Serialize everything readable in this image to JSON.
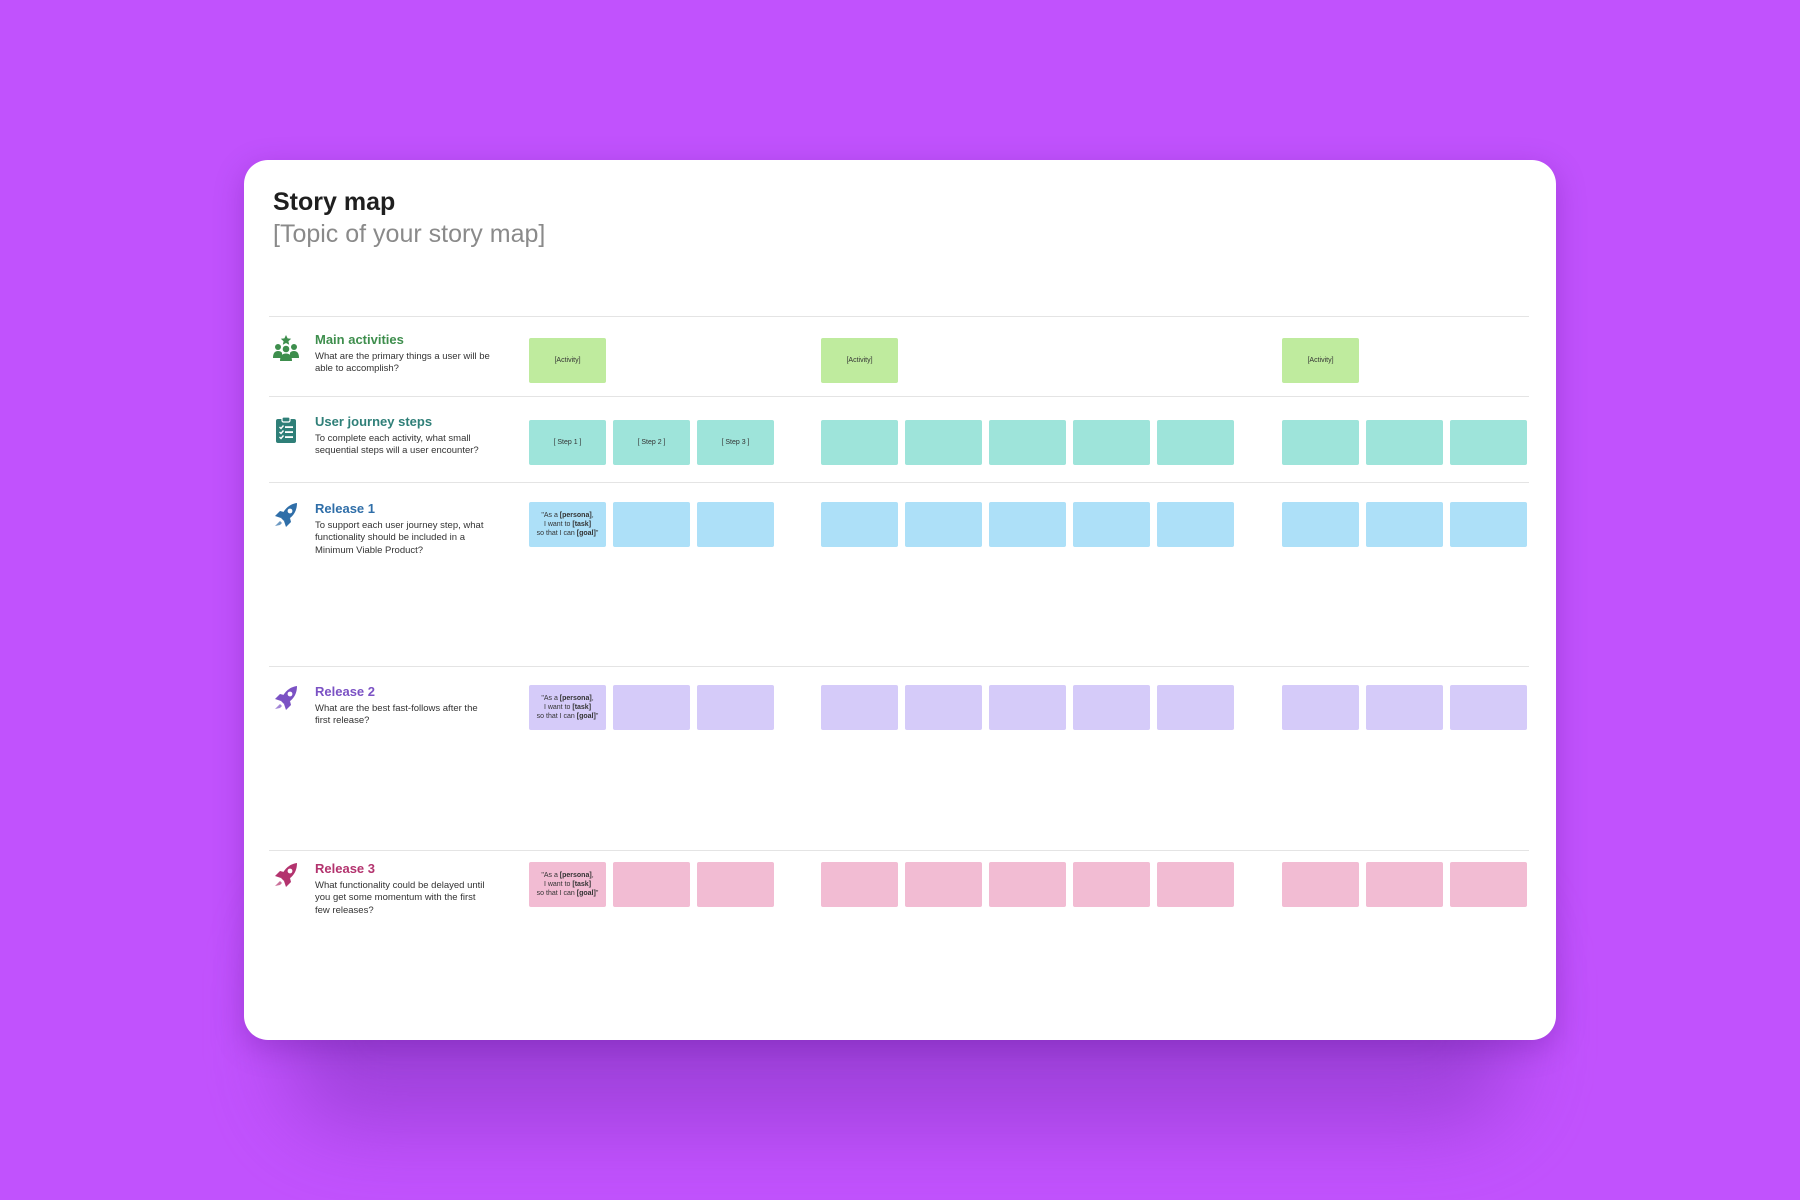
{
  "board": {
    "title": "Story map",
    "subtitle": "[Topic of your story map]"
  },
  "rows": [
    {
      "id": "main-activities",
      "icon": "group-icon",
      "color": "#3e8e4d",
      "title": "Main activities",
      "desc": "What are the primary things a user will be able to accomplish?"
    },
    {
      "id": "user-journey-steps",
      "icon": "clipboard-checklist-icon",
      "color": "#2f7f78",
      "title": "User journey steps",
      "desc": "To complete each activity, what small sequential steps will a user encounter?"
    },
    {
      "id": "release-1",
      "icon": "rocket-icon",
      "color": "#2f6ea8",
      "title": "Release 1",
      "desc": "To support each user journey step, what functionality should be included in a Minimum Viable Product?"
    },
    {
      "id": "release-2",
      "icon": "rocket-icon",
      "color": "#7b52c4",
      "title": "Release 2",
      "desc": "What are the best fast-follows after the first release?"
    },
    {
      "id": "release-3",
      "icon": "rocket-icon",
      "color": "#b3336e",
      "title": "Release 3",
      "desc": "What functionality could be delayed until you get some momentum with the first few releases?"
    }
  ],
  "activities": [
    "[Activity]",
    "[Activity]",
    "[Activity]"
  ],
  "steps": [
    "[ Step 1 ]",
    "[ Step 2 ]",
    "[ Step 3 ]"
  ],
  "story_template": {
    "p1": "\"As a ",
    "persona": "[persona]",
    "p2": ",",
    "p3": "I want to ",
    "task": "[task]",
    "p4": "so that I can ",
    "goal": "[goal]",
    "p5": "\""
  },
  "colors": {
    "background": "#c152fd",
    "activity": "#bfeb9e",
    "step": "#9ee4da",
    "release1": "#ade0f8",
    "release2": "#d5cbf9",
    "release3": "#f2bcd3"
  }
}
